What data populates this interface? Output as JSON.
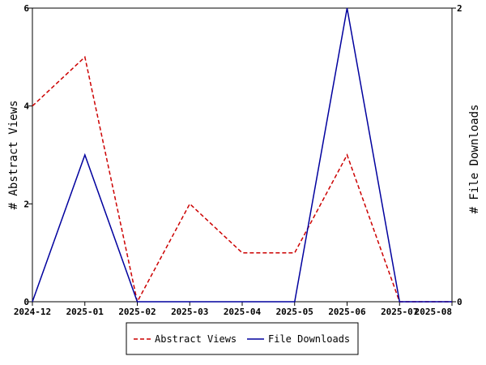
{
  "chart_data": {
    "type": "line",
    "x": [
      "2024-12",
      "2025-01",
      "2025-02",
      "2025-03",
      "2025-04",
      "2025-05",
      "2025-06",
      "2025-07",
      "2025-08"
    ],
    "series": [
      {
        "name": "Abstract Views",
        "axis": "left",
        "color": "#cc0000",
        "style": "dashed",
        "values": [
          4,
          5,
          0,
          2,
          1,
          1,
          3,
          0,
          0
        ]
      },
      {
        "name": "File Downloads",
        "axis": "right",
        "color": "#00009e",
        "style": "solid",
        "values": [
          0,
          1,
          0,
          0,
          0,
          0,
          2,
          0,
          0
        ]
      }
    ],
    "ylabel_left": "# Abstract Views",
    "ylabel_right": "# File Downloads",
    "ylim_left": [
      0,
      6
    ],
    "yticks_left": [
      0,
      2,
      4,
      6
    ],
    "ylim_right": [
      0,
      2
    ],
    "yticks_right": [
      0,
      2
    ],
    "grid": false,
    "legend_position": "bottom"
  }
}
